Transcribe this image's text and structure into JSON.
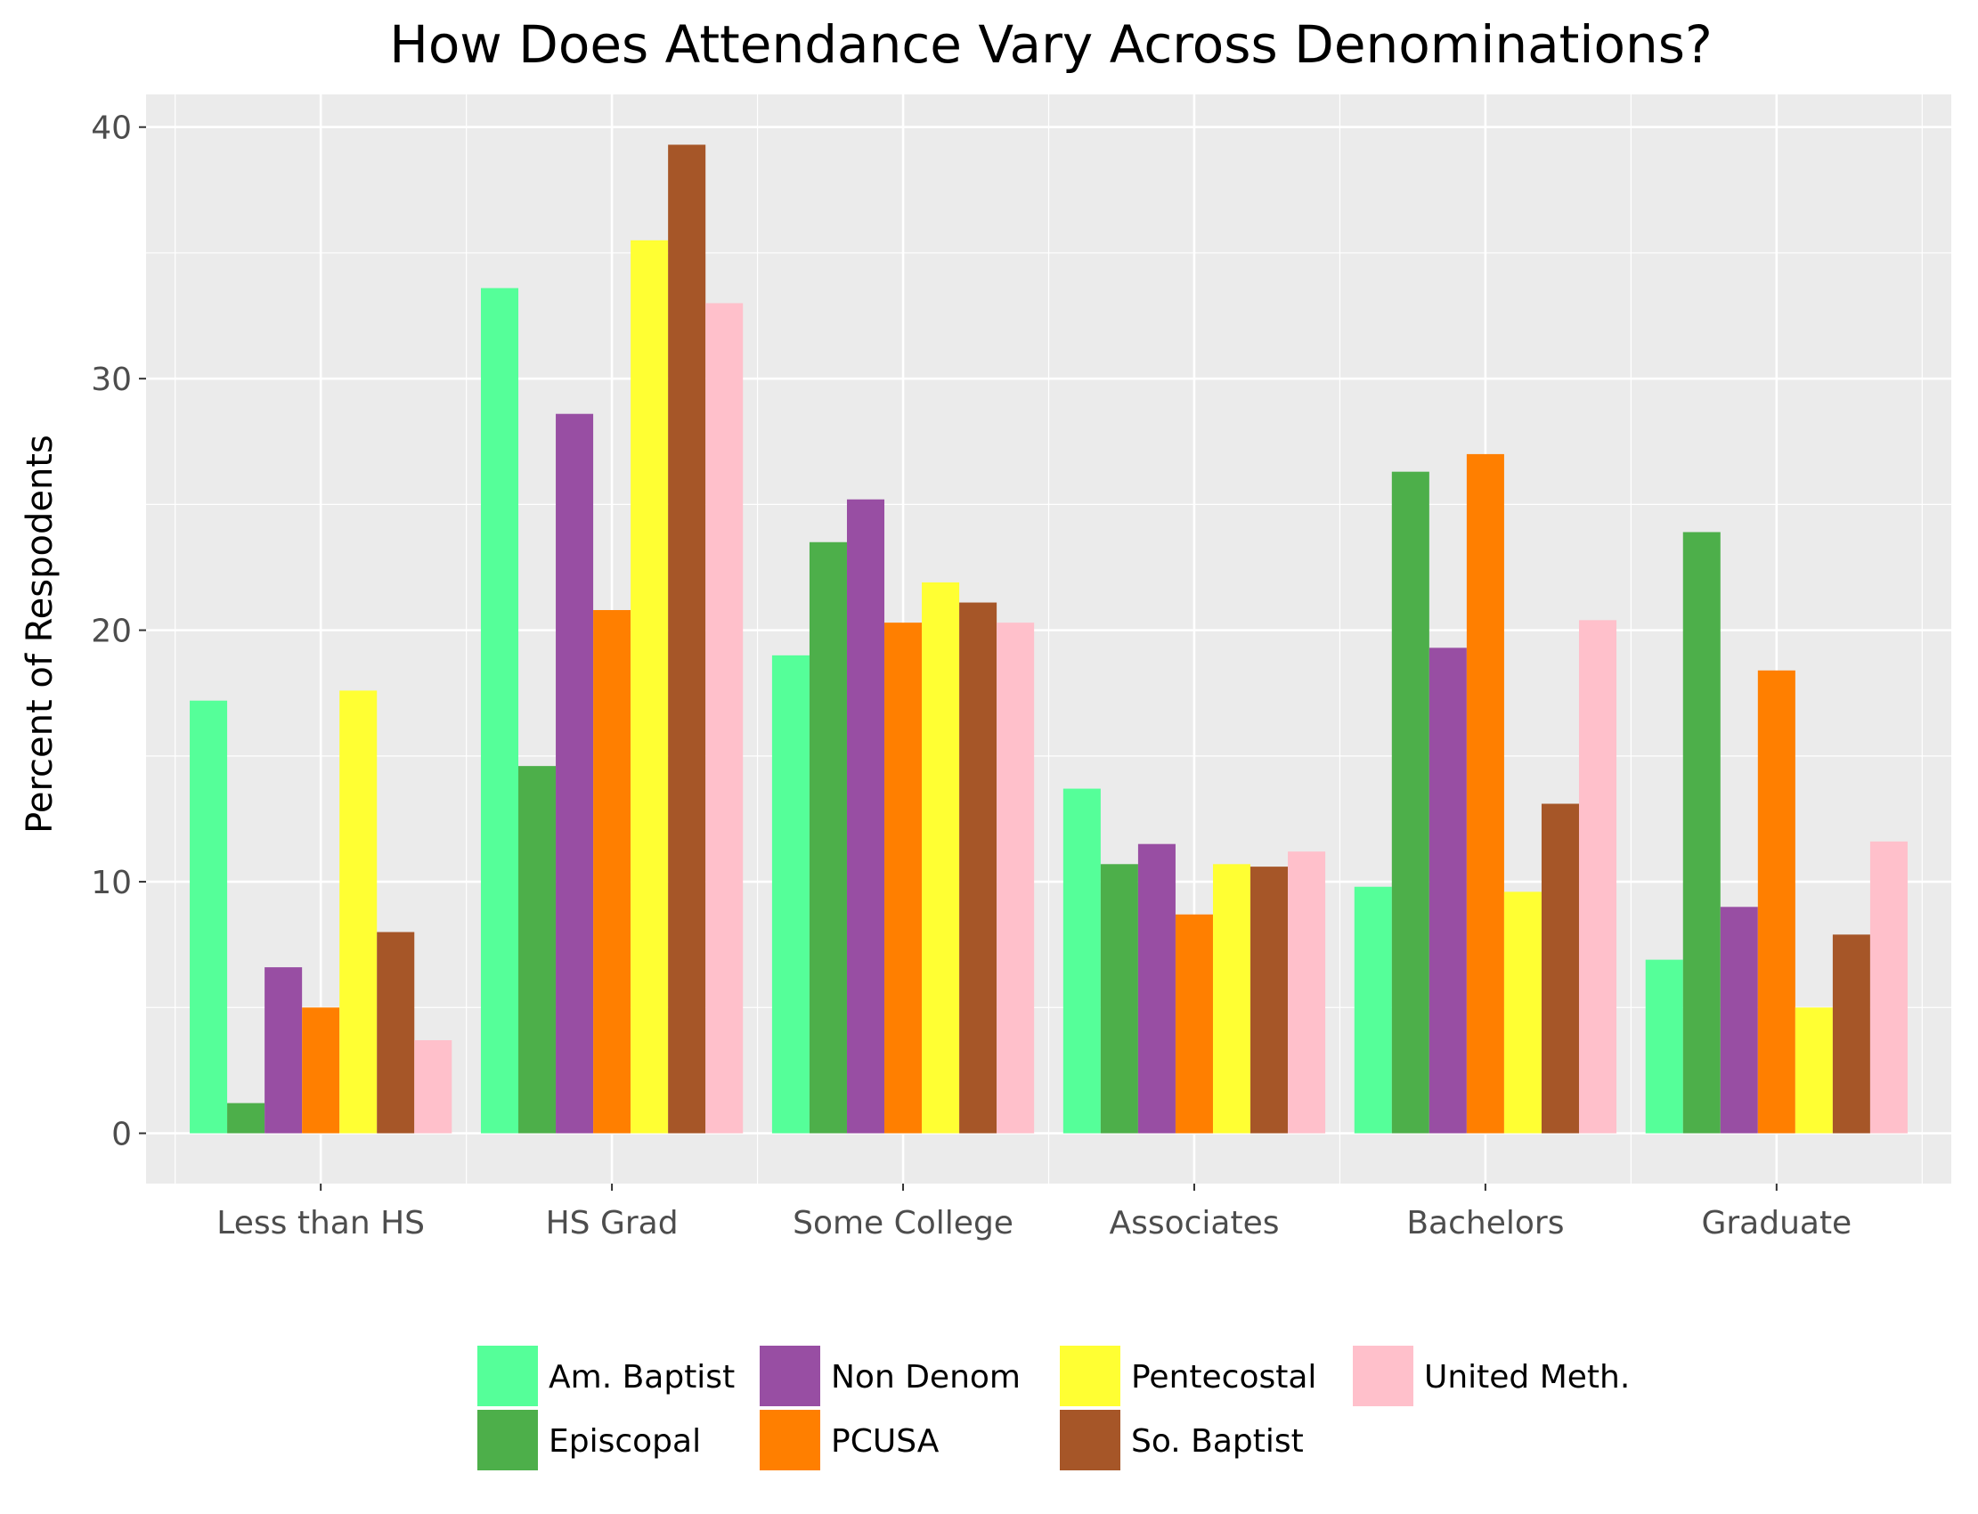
{
  "chart_data": {
    "type": "bar",
    "title": "How Does Attendance Vary Across Denominations?",
    "xlabel": "",
    "ylabel": "Percent of Respodents",
    "ylim": [
      -2,
      41.3
    ],
    "yticks": [
      0,
      10,
      20,
      30,
      40
    ],
    "yticks_labels": [
      "0",
      "10",
      "20",
      "30",
      "40"
    ],
    "categories": [
      "Less than HS",
      "HS Grad",
      "Some College",
      "Associates",
      "Bachelors",
      "Graduate"
    ],
    "grid": true,
    "legend_position": "bottom",
    "series": [
      {
        "name": "Am. Baptist",
        "color": "#55ff99",
        "values": [
          17.2,
          33.6,
          19.0,
          13.7,
          9.8,
          6.9
        ]
      },
      {
        "name": "Episcopal",
        "color": "#4daf4a",
        "values": [
          1.2,
          14.6,
          23.5,
          10.7,
          26.3,
          23.9
        ]
      },
      {
        "name": "Non Denom",
        "color": "#984ea3",
        "values": [
          6.6,
          28.6,
          25.2,
          11.5,
          19.3,
          9.0
        ]
      },
      {
        "name": "PCUSA",
        "color": "#ff7f00",
        "values": [
          5.0,
          20.8,
          20.3,
          8.7,
          27.0,
          18.4
        ]
      },
      {
        "name": "Pentecostal",
        "color": "#ffff33",
        "values": [
          17.6,
          35.5,
          21.9,
          10.7,
          9.6,
          5.0
        ]
      },
      {
        "name": "So. Baptist",
        "color": "#a65628",
        "values": [
          8.0,
          39.3,
          21.1,
          10.6,
          13.1,
          7.9
        ]
      },
      {
        "name": "United Meth.",
        "color": "#ffc0cb",
        "values": [
          3.7,
          33.0,
          20.3,
          11.2,
          20.4,
          11.6
        ]
      }
    ]
  }
}
